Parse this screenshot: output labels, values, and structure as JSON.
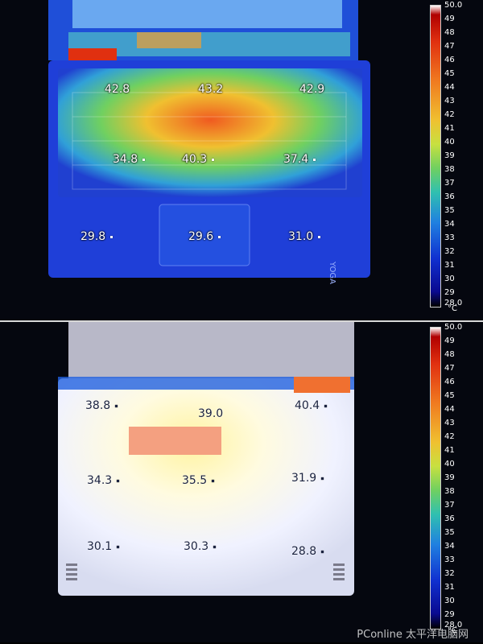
{
  "top_panel": {
    "readings": [
      "42.8",
      "43.2",
      "42.9",
      "34.8",
      "40.3",
      "37.4",
      "29.8",
      "29.6",
      "31.0"
    ],
    "brand_text": "YOGA"
  },
  "bottom_panel": {
    "readings": [
      "38.8",
      "39.0",
      "40.4",
      "34.3",
      "35.5",
      "31.9",
      "30.1",
      "30.3",
      "28.8"
    ]
  },
  "scale": {
    "max_label": "50.0",
    "min_label": "28.0",
    "ticks": [
      "49",
      "48",
      "47",
      "46",
      "45",
      "44",
      "43",
      "42",
      "41",
      "40",
      "39",
      "38",
      "37",
      "36",
      "35",
      "34",
      "33",
      "32",
      "31",
      "30",
      "29"
    ],
    "unit": "°C"
  },
  "watermark": "PConline 太平洋电脑网",
  "colors": {
    "hot": "#e03010",
    "warm": "#f0c030",
    "mid": "#70d060",
    "cool": "#2080e0",
    "cold": "#0a0a90"
  }
}
